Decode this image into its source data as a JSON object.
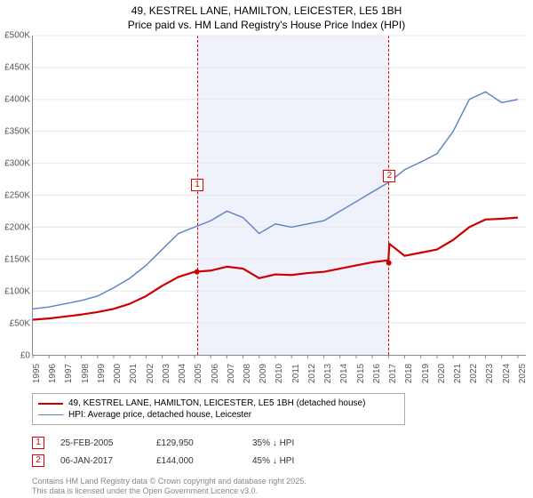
{
  "title_line1": "49, KESTREL LANE, HAMILTON, LEICESTER, LE5 1BH",
  "title_line2": "Price paid vs. HM Land Registry's House Price Index (HPI)",
  "chart": {
    "type": "line",
    "background_color": "#ffffff",
    "grid_color": "#e8e8e8",
    "axis_color": "#888888",
    "xlim": [
      1995,
      2025.5
    ],
    "ylim": [
      0,
      500000
    ],
    "y_ticks": [
      0,
      50000,
      100000,
      150000,
      200000,
      250000,
      300000,
      350000,
      400000,
      450000,
      500000
    ],
    "y_tick_labels": [
      "£0",
      "£50K",
      "£100K",
      "£150K",
      "£200K",
      "£250K",
      "£300K",
      "£350K",
      "£400K",
      "£450K",
      "£500K"
    ],
    "x_ticks": [
      1995,
      1996,
      1997,
      1998,
      1999,
      2000,
      2001,
      2002,
      2003,
      2004,
      2005,
      2006,
      2007,
      2008,
      2009,
      2010,
      2011,
      2012,
      2013,
      2014,
      2015,
      2016,
      2017,
      2018,
      2019,
      2020,
      2021,
      2022,
      2023,
      2024,
      2025
    ],
    "label_fontsize": 10,
    "series": [
      {
        "name": "property",
        "label": "49, KESTREL LANE, HAMILTON, LEICESTER, LE5 1BH (detached house)",
        "color": "#cc0000",
        "line_width": 2.2,
        "x": [
          1995,
          1996,
          1997,
          1998,
          1999,
          2000,
          2001,
          2002,
          2003,
          2004,
          2005,
          2006,
          2007,
          2008,
          2009,
          2010,
          2011,
          2012,
          2013,
          2014,
          2015,
          2016,
          2017,
          2017.05,
          2018,
          2019,
          2020,
          2021,
          2022,
          2023,
          2024,
          2025
        ],
        "y": [
          55000,
          57000,
          60000,
          63000,
          67000,
          72000,
          80000,
          92000,
          108000,
          122000,
          130000,
          132000,
          138000,
          135000,
          120000,
          126000,
          125000,
          128000,
          130000,
          135000,
          140000,
          145000,
          148000,
          174000,
          155000,
          160000,
          165000,
          180000,
          200000,
          212000,
          213000,
          215000
        ]
      },
      {
        "name": "hpi",
        "label": "HPI: Average price, detached house, Leicester",
        "color": "#5a7fc4",
        "line_width": 1.4,
        "x": [
          1995,
          1996,
          1997,
          1998,
          1999,
          2000,
          2001,
          2002,
          2003,
          2004,
          2005,
          2006,
          2007,
          2008,
          2009,
          2010,
          2011,
          2012,
          2013,
          2014,
          2015,
          2016,
          2017,
          2018,
          2019,
          2020,
          2021,
          2022,
          2023,
          2024,
          2025
        ],
        "y": [
          72000,
          75000,
          80000,
          85000,
          92000,
          105000,
          120000,
          140000,
          165000,
          190000,
          200000,
          210000,
          225000,
          215000,
          190000,
          205000,
          200000,
          205000,
          210000,
          225000,
          240000,
          255000,
          270000,
          290000,
          302000,
          315000,
          350000,
          400000,
          412000,
          395000,
          400000
        ]
      }
    ],
    "shaded_region": {
      "x_start": 2005.15,
      "x_end": 2017.02,
      "fill": "rgba(200,210,240,0.28)",
      "border_color": "#d00000"
    },
    "sale_markers": [
      {
        "index": "1",
        "x": 2005.15,
        "y": 129950,
        "label_y_offset": -105
      },
      {
        "index": "2",
        "x": 2017.02,
        "y": 144000,
        "label_y_offset": -105
      }
    ],
    "marker_point": {
      "color": "#cc0000",
      "radius": 3
    }
  },
  "legend": {
    "border_color": "#aaaaaa",
    "items": [
      {
        "color": "#cc0000",
        "width": 2.2,
        "text": "49, KESTREL LANE, HAMILTON, LEICESTER, LE5 1BH (detached house)"
      },
      {
        "color": "#5a7fc4",
        "width": 1.4,
        "text": "HPI: Average price, detached house, Leicester"
      }
    ]
  },
  "sales": [
    {
      "index": "1",
      "date": "25-FEB-2005",
      "price": "£129,950",
      "delta": "35% ↓ HPI"
    },
    {
      "index": "2",
      "date": "06-JAN-2017",
      "price": "£144,000",
      "delta": "45% ↓ HPI"
    }
  ],
  "footer_line1": "Contains HM Land Registry data © Crown copyright and database right 2025.",
  "footer_line2": "This data is licensed under the Open Government Licence v3.0."
}
